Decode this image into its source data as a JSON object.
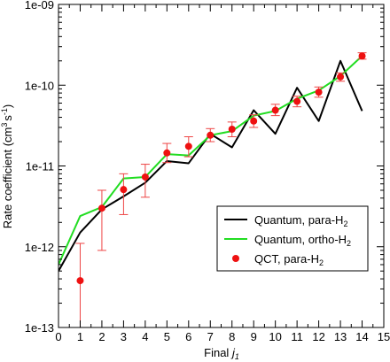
{
  "chart_data": {
    "type": "line",
    "xlabel": "Final",
    "xlabel_var": "j",
    "xlabel_sub": "1",
    "ylabel": "Rate coefficient (cm",
    "ylabel_sup1": "3",
    "ylabel_mid": "s",
    "ylabel_sup2": "-1",
    "ylabel_end": ")",
    "yscale": "log",
    "xlim": [
      0,
      15
    ],
    "ylim": [
      1e-13,
      1e-09
    ],
    "x_ticks": [
      0,
      1,
      2,
      3,
      4,
      5,
      6,
      7,
      8,
      9,
      10,
      11,
      12,
      13,
      14,
      15
    ],
    "y_ticks": [
      {
        "value": 1e-13,
        "label": "1e-13"
      },
      {
        "value": 1e-12,
        "label": "1e-12"
      },
      {
        "value": 1e-11,
        "label": "1e-11"
      },
      {
        "value": 1e-10,
        "label": "1e-10"
      },
      {
        "value": 1e-09,
        "label": "1e-09"
      }
    ],
    "grid": false,
    "legend_position": "lower-right",
    "series": [
      {
        "name": "Quantum, para-H",
        "name_sub": "2",
        "kind": "line",
        "color": "#000000",
        "x": [
          0,
          1,
          2,
          3,
          4,
          5,
          6,
          7,
          8,
          9,
          10,
          11,
          12,
          13,
          14
        ],
        "y": [
          5e-13,
          1.5e-12,
          2.9e-12,
          4.2e-12,
          6.2e-12,
          1.15e-11,
          1.08e-11,
          2.5e-11,
          1.7e-11,
          4.9e-11,
          2.5e-11,
          9.3e-11,
          3.6e-11,
          2e-10,
          4.8e-11
        ]
      },
      {
        "name": "Quantum, ortho-H",
        "name_sub": "2",
        "kind": "line",
        "color": "#22dd22",
        "x": [
          0,
          1,
          2,
          3,
          4,
          5,
          6,
          7,
          8,
          9,
          10,
          11,
          12,
          13,
          14
        ],
        "y": [
          6e-13,
          2.4e-12,
          3.1e-12,
          7e-12,
          7.3e-12,
          1.4e-11,
          1.35e-11,
          2.4e-11,
          2.7e-11,
          4.2e-11,
          4.8e-11,
          6.8e-11,
          8.6e-11,
          1.3e-10,
          2.3e-10
        ]
      },
      {
        "name": "QCT, para-H",
        "name_sub": "2",
        "kind": "scatter",
        "color": "#ee1111",
        "error_color": "#ee4444",
        "x": [
          1,
          2,
          3,
          4,
          5,
          6,
          7,
          8,
          9,
          10,
          11,
          12,
          13,
          14
        ],
        "y": [
          3.8e-13,
          3e-12,
          5.1e-12,
          7.3e-12,
          1.45e-11,
          1.75e-11,
          2.4e-11,
          2.85e-11,
          3.6e-11,
          4.9e-11,
          6.3e-11,
          8.2e-11,
          1.27e-10,
          2.3e-10
        ],
        "y_low": [
          1e-13,
          9e-13,
          2.5e-12,
          4.1e-12,
          1.1e-11,
          1.3e-11,
          2e-11,
          2.3e-11,
          3e-11,
          4.2e-11,
          5.4e-11,
          7.1e-11,
          1.12e-10,
          2.1e-10
        ],
        "y_high": [
          1.1e-12,
          5e-12,
          8e-12,
          1.05e-11,
          1.9e-11,
          2.3e-11,
          2.9e-11,
          3.5e-11,
          4.3e-11,
          5.8e-11,
          7.3e-11,
          9.5e-11,
          1.42e-10,
          2.52e-10
        ]
      }
    ]
  }
}
